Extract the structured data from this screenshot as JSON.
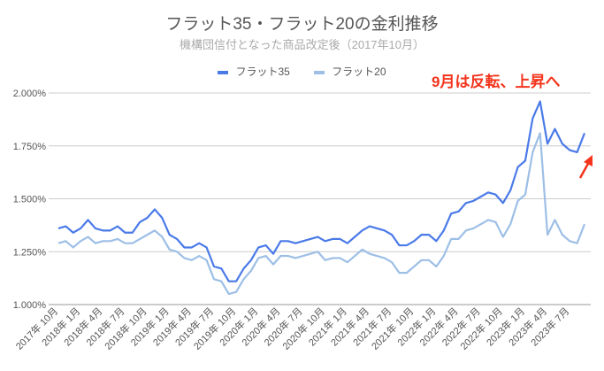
{
  "chart_data": {
    "type": "line",
    "title": "フラット35・フラット20の金利推移",
    "subtitle": "機構団信付となった商品改定後（2017年10月）",
    "legend_position": "top",
    "grid": true,
    "ylim": [
      1.0,
      2.0
    ],
    "y_ticks": [
      "1.000%",
      "1.250%",
      "1.500%",
      "1.750%",
      "2.000%"
    ],
    "y_tick_values": [
      1.0,
      1.25,
      1.5,
      1.75,
      2.0
    ],
    "x_tick_labels": [
      "2017年 10月",
      "2018年 1月",
      "2018年 4月",
      "2018年 7月",
      "2018年 10月",
      "2019年 1月",
      "2019年 4月",
      "2019年 7月",
      "2019年 10月",
      "2020年 1月",
      "2020年 4月",
      "2020年 7月",
      "2020年 10月",
      "2021年 1月",
      "2021年 4月",
      "2021年 7月",
      "2021年 10月",
      "2022年 1月",
      "2022年 4月",
      "2022年 7月",
      "2022年 10月",
      "2023年 1月",
      "2023年 4月",
      "2023年 7月"
    ],
    "series": [
      {
        "name": "フラット35",
        "color": "#4a7ae8",
        "values": [
          1.36,
          1.37,
          1.34,
          1.36,
          1.4,
          1.36,
          1.35,
          1.35,
          1.37,
          1.34,
          1.34,
          1.39,
          1.41,
          1.45,
          1.41,
          1.33,
          1.31,
          1.27,
          1.27,
          1.29,
          1.27,
          1.18,
          1.17,
          1.11,
          1.11,
          1.17,
          1.21,
          1.27,
          1.28,
          1.24,
          1.3,
          1.3,
          1.29,
          1.3,
          1.31,
          1.32,
          1.3,
          1.31,
          1.31,
          1.29,
          1.32,
          1.35,
          1.37,
          1.36,
          1.35,
          1.33,
          1.28,
          1.28,
          1.3,
          1.33,
          1.33,
          1.3,
          1.35,
          1.43,
          1.44,
          1.48,
          1.49,
          1.51,
          1.53,
          1.52,
          1.48,
          1.54,
          1.65,
          1.68,
          1.88,
          1.96,
          1.76,
          1.83,
          1.76,
          1.73,
          1.72,
          1.81
        ]
      },
      {
        "name": "フラット20",
        "color": "#9dbfe6",
        "values": [
          1.29,
          1.3,
          1.27,
          1.3,
          1.32,
          1.29,
          1.3,
          1.3,
          1.31,
          1.29,
          1.29,
          1.31,
          1.33,
          1.35,
          1.32,
          1.26,
          1.25,
          1.22,
          1.21,
          1.23,
          1.21,
          1.12,
          1.11,
          1.05,
          1.06,
          1.12,
          1.16,
          1.22,
          1.23,
          1.19,
          1.23,
          1.23,
          1.22,
          1.23,
          1.24,
          1.25,
          1.21,
          1.22,
          1.22,
          1.2,
          1.23,
          1.26,
          1.24,
          1.23,
          1.22,
          1.2,
          1.15,
          1.15,
          1.18,
          1.21,
          1.21,
          1.18,
          1.23,
          1.31,
          1.31,
          1.35,
          1.36,
          1.38,
          1.4,
          1.39,
          1.32,
          1.38,
          1.49,
          1.52,
          1.72,
          1.81,
          1.33,
          1.4,
          1.33,
          1.3,
          1.29,
          1.38
        ]
      }
    ],
    "annotation": {
      "text": "9月は反転、上昇へ",
      "color": "#f4341c"
    }
  }
}
